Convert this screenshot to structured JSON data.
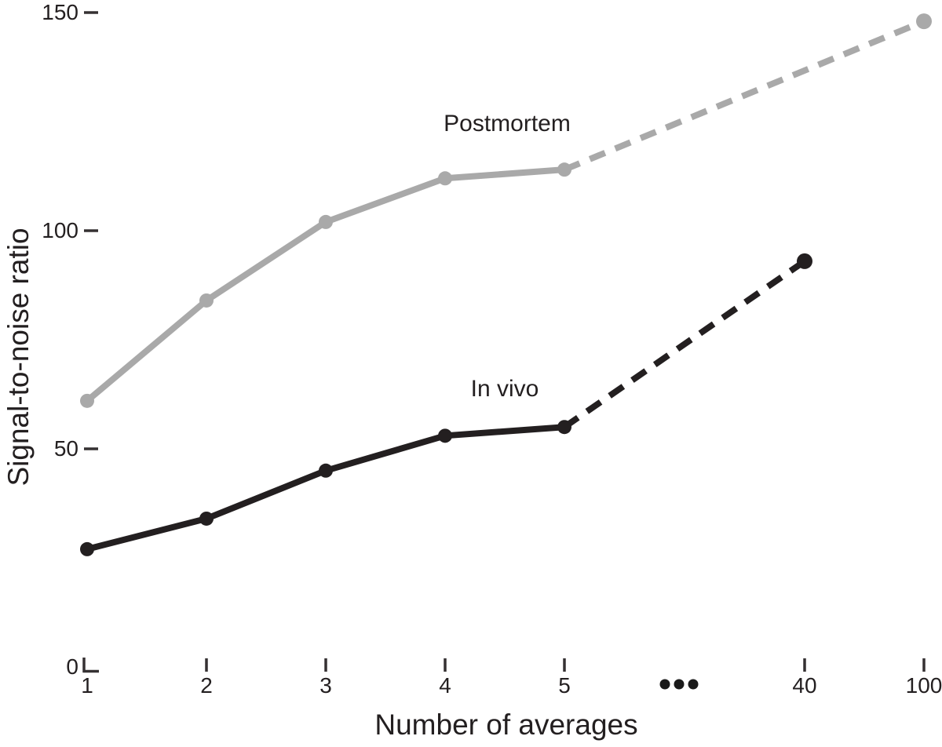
{
  "figure": {
    "background": "#ffffff",
    "text_color": "#231f20"
  },
  "chart_data": {
    "type": "line",
    "title": "",
    "xlabel": "Number of averages",
    "ylabel": "Signal-to-noise ratio",
    "x_tick_labels": [
      "1",
      "2",
      "3",
      "4",
      "5",
      "40",
      "100"
    ],
    "x_axis_break": {
      "marker": "•••",
      "between": [
        "5",
        "40"
      ]
    },
    "y_tick_values": [
      0,
      50,
      100,
      150
    ],
    "y_tick_labels": [
      "0",
      "50",
      "100",
      "150"
    ],
    "ylim": [
      0,
      155
    ],
    "grid": false,
    "legend_position": "inline-annotations",
    "axis_color": "#353132",
    "break_dots_color": "#1a1a1a",
    "series": [
      {
        "name": "Postmortem",
        "color": "#a9a9a9",
        "style": "solid-then-dashed",
        "dashed_after_x": 5,
        "x": [
          1,
          2,
          3,
          4,
          5,
          100
        ],
        "values": [
          61,
          84,
          102,
          112,
          114,
          148
        ]
      },
      {
        "name": "In vivo",
        "color": "#231f20",
        "style": "solid-then-dashed",
        "dashed_after_x": 5,
        "x": [
          1,
          2,
          3,
          4,
          5,
          40
        ],
        "values": [
          27,
          34,
          45,
          53,
          55,
          93
        ]
      }
    ],
    "annotations": [
      {
        "text": "Postmortem",
        "series": "Postmortem"
      },
      {
        "text": "In vivo",
        "series": "In vivo"
      }
    ]
  }
}
